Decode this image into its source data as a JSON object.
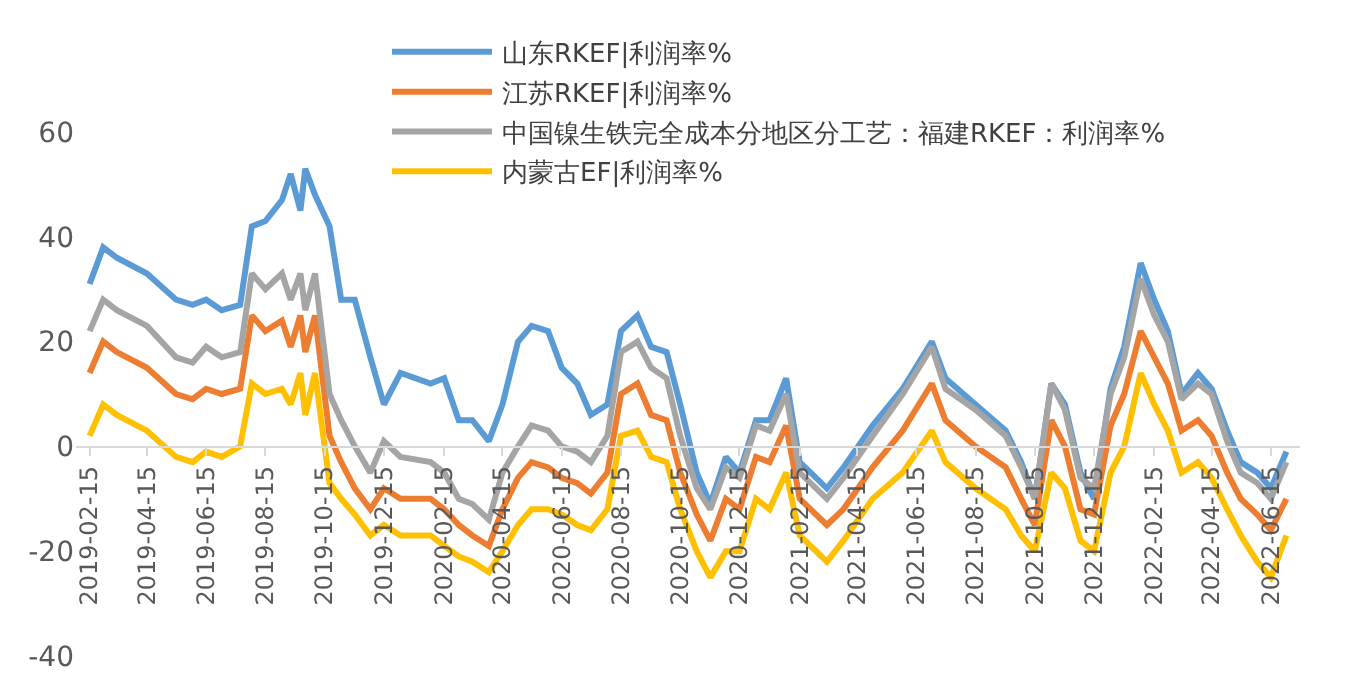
{
  "chart_data": {
    "type": "line",
    "x": [
      "2019-02-15",
      "2019-03-01",
      "2019-03-15",
      "2019-04-15",
      "2019-05-15",
      "2019-06-01",
      "2019-06-15",
      "2019-07-01",
      "2019-07-20",
      "2019-08-01",
      "2019-08-15",
      "2019-09-01",
      "2019-09-10",
      "2019-09-20",
      "2019-09-25",
      "2019-10-05",
      "2019-10-20",
      "2019-11-01",
      "2019-11-15",
      "2019-12-01",
      "2019-12-15",
      "2020-01-01",
      "2020-02-01",
      "2020-02-15",
      "2020-03-01",
      "2020-03-15",
      "2020-04-01",
      "2020-04-15",
      "2020-05-01",
      "2020-05-15",
      "2020-06-01",
      "2020-06-15",
      "2020-07-01",
      "2020-07-15",
      "2020-08-01",
      "2020-08-15",
      "2020-09-01",
      "2020-09-15",
      "2020-10-01",
      "2020-10-15",
      "2020-11-01",
      "2020-11-15",
      "2020-12-01",
      "2020-12-15",
      "2021-01-01",
      "2021-01-15",
      "2021-02-01",
      "2021-02-15",
      "2021-03-15",
      "2021-04-01",
      "2021-05-01",
      "2021-06-01",
      "2021-07-01",
      "2021-07-15",
      "2021-08-15",
      "2021-09-15",
      "2021-10-01",
      "2021-10-15",
      "2021-11-01",
      "2021-11-15",
      "2021-12-01",
      "2021-12-15",
      "2022-01-01",
      "2022-01-15",
      "2022-02-01",
      "2022-02-15",
      "2022-03-01",
      "2022-03-15",
      "2022-04-01",
      "2022-04-15",
      "2022-05-01",
      "2022-05-15",
      "2022-06-01",
      "2022-06-15",
      "2022-07-01"
    ],
    "series": [
      {
        "name": "山东RKEF|利润率%",
        "color": "#5b9bd5",
        "values": [
          31,
          38,
          36,
          33,
          28,
          27,
          28,
          26,
          27,
          42,
          43,
          47,
          52,
          45,
          53,
          48,
          42,
          28,
          28,
          17,
          8,
          14,
          12,
          13,
          5,
          5,
          1,
          8,
          20,
          23,
          22,
          15,
          12,
          6,
          8,
          22,
          25,
          19,
          18,
          8,
          -5,
          -11,
          -2,
          -5,
          5,
          5,
          13,
          -3,
          -8,
          -4,
          4,
          11,
          20,
          13,
          8,
          3,
          -3,
          -10,
          12,
          8,
          -5,
          -10,
          11,
          19,
          35,
          28,
          22,
          10,
          14,
          11,
          3,
          -3,
          -5,
          -8,
          -1
        ]
      },
      {
        "name": "江苏RKEF|利润率%",
        "color": "#ed7d31",
        "values": [
          14,
          20,
          18,
          15,
          10,
          9,
          11,
          10,
          11,
          25,
          22,
          24,
          19,
          25,
          18,
          25,
          2,
          -3,
          -8,
          -12,
          -8,
          -10,
          -10,
          -12,
          -15,
          -17,
          -19,
          -12,
          -6,
          -3,
          -4,
          -6,
          -7,
          -9,
          -5,
          10,
          12,
          6,
          5,
          -5,
          -13,
          -18,
          -10,
          -12,
          -2,
          -3,
          4,
          -10,
          -15,
          -12,
          -4,
          3,
          12,
          5,
          0,
          -4,
          -10,
          -15,
          5,
          0,
          -12,
          -13,
          4,
          10,
          22,
          17,
          12,
          3,
          5,
          2,
          -5,
          -10,
          -13,
          -16,
          -10
        ]
      },
      {
        "name": "中国镍生铁完全成本分地区分工艺：福建RKEF：利润率%",
        "color": "#a5a5a5",
        "values": [
          22,
          28,
          26,
          23,
          17,
          16,
          19,
          17,
          18,
          33,
          30,
          33,
          28,
          33,
          26,
          33,
          10,
          5,
          0,
          -5,
          1,
          -2,
          -3,
          -5,
          -10,
          -11,
          -14,
          -5,
          0,
          4,
          3,
          0,
          -1,
          -3,
          2,
          18,
          20,
          15,
          13,
          2,
          -8,
          -12,
          -4,
          -6,
          4,
          3,
          10,
          -5,
          -10,
          -6,
          2,
          10,
          19,
          11,
          7,
          2,
          -4,
          -10,
          12,
          7,
          -6,
          -8,
          10,
          17,
          32,
          25,
          20,
          9,
          12,
          10,
          1,
          -5,
          -7,
          -10,
          -3
        ]
      },
      {
        "name": "内蒙古EF|利润率%",
        "color": "#ffc000",
        "values": [
          2,
          8,
          6,
          3,
          -2,
          -3,
          -1,
          -2,
          0,
          12,
          10,
          11,
          8,
          14,
          6,
          14,
          -7,
          -10,
          -13,
          -17,
          -15,
          -17,
          -17,
          -19,
          -21,
          -22,
          -24,
          -20,
          -15,
          -12,
          -12,
          -13,
          -15,
          -16,
          -12,
          2,
          3,
          -2,
          -3,
          -12,
          -20,
          -25,
          -20,
          -20,
          -10,
          -12,
          -5,
          -17,
          -22,
          -18,
          -10,
          -5,
          3,
          -3,
          -8,
          -12,
          -17,
          -20,
          -5,
          -8,
          -18,
          -20,
          -5,
          0,
          14,
          8,
          3,
          -5,
          -3,
          -6,
          -12,
          -17,
          -22,
          -25,
          -17
        ]
      }
    ],
    "xlim": [
      "2019-02-01",
      "2022-07-15"
    ],
    "xticks": [
      "2019-02-15",
      "2019-04-15",
      "2019-06-15",
      "2019-08-15",
      "2019-10-15",
      "2019-12-15",
      "2020-02-15",
      "2020-04-15",
      "2020-06-15",
      "2020-08-15",
      "2020-10-15",
      "2020-12-15",
      "2021-02-15",
      "2021-04-15",
      "2021-06-15",
      "2021-08-15",
      "2021-10-15",
      "2021-12-15",
      "2022-02-15",
      "2022-04-15",
      "2022-06-15"
    ],
    "ylim": [
      -40,
      60
    ],
    "yticks": [
      -40,
      -20,
      0,
      20,
      40,
      60
    ],
    "legend": "top"
  }
}
